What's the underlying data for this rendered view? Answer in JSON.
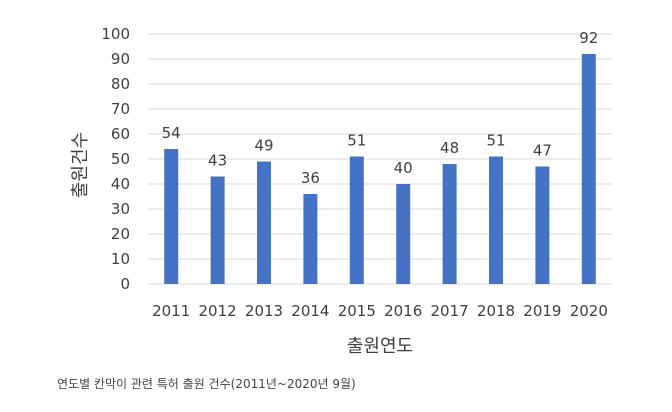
{
  "chart_data": {
    "type": "bar",
    "categories": [
      "2011",
      "2012",
      "2013",
      "2014",
      "2015",
      "2016",
      "2017",
      "2018",
      "2019",
      "2020"
    ],
    "values": [
      54,
      43,
      49,
      36,
      51,
      40,
      48,
      51,
      47,
      92
    ],
    "xlabel": "출원연도",
    "ylabel": "출원건수",
    "ylim": [
      0,
      100
    ],
    "yticks": [
      0,
      10,
      20,
      30,
      40,
      50,
      60,
      70,
      80,
      90,
      100
    ],
    "grid": true,
    "bar_color": "#4472C4",
    "grid_color": "#d9d9d9"
  },
  "caption": "연도별 칸막이 관련 특허 출원 건수(2011년~2020년 9월)"
}
